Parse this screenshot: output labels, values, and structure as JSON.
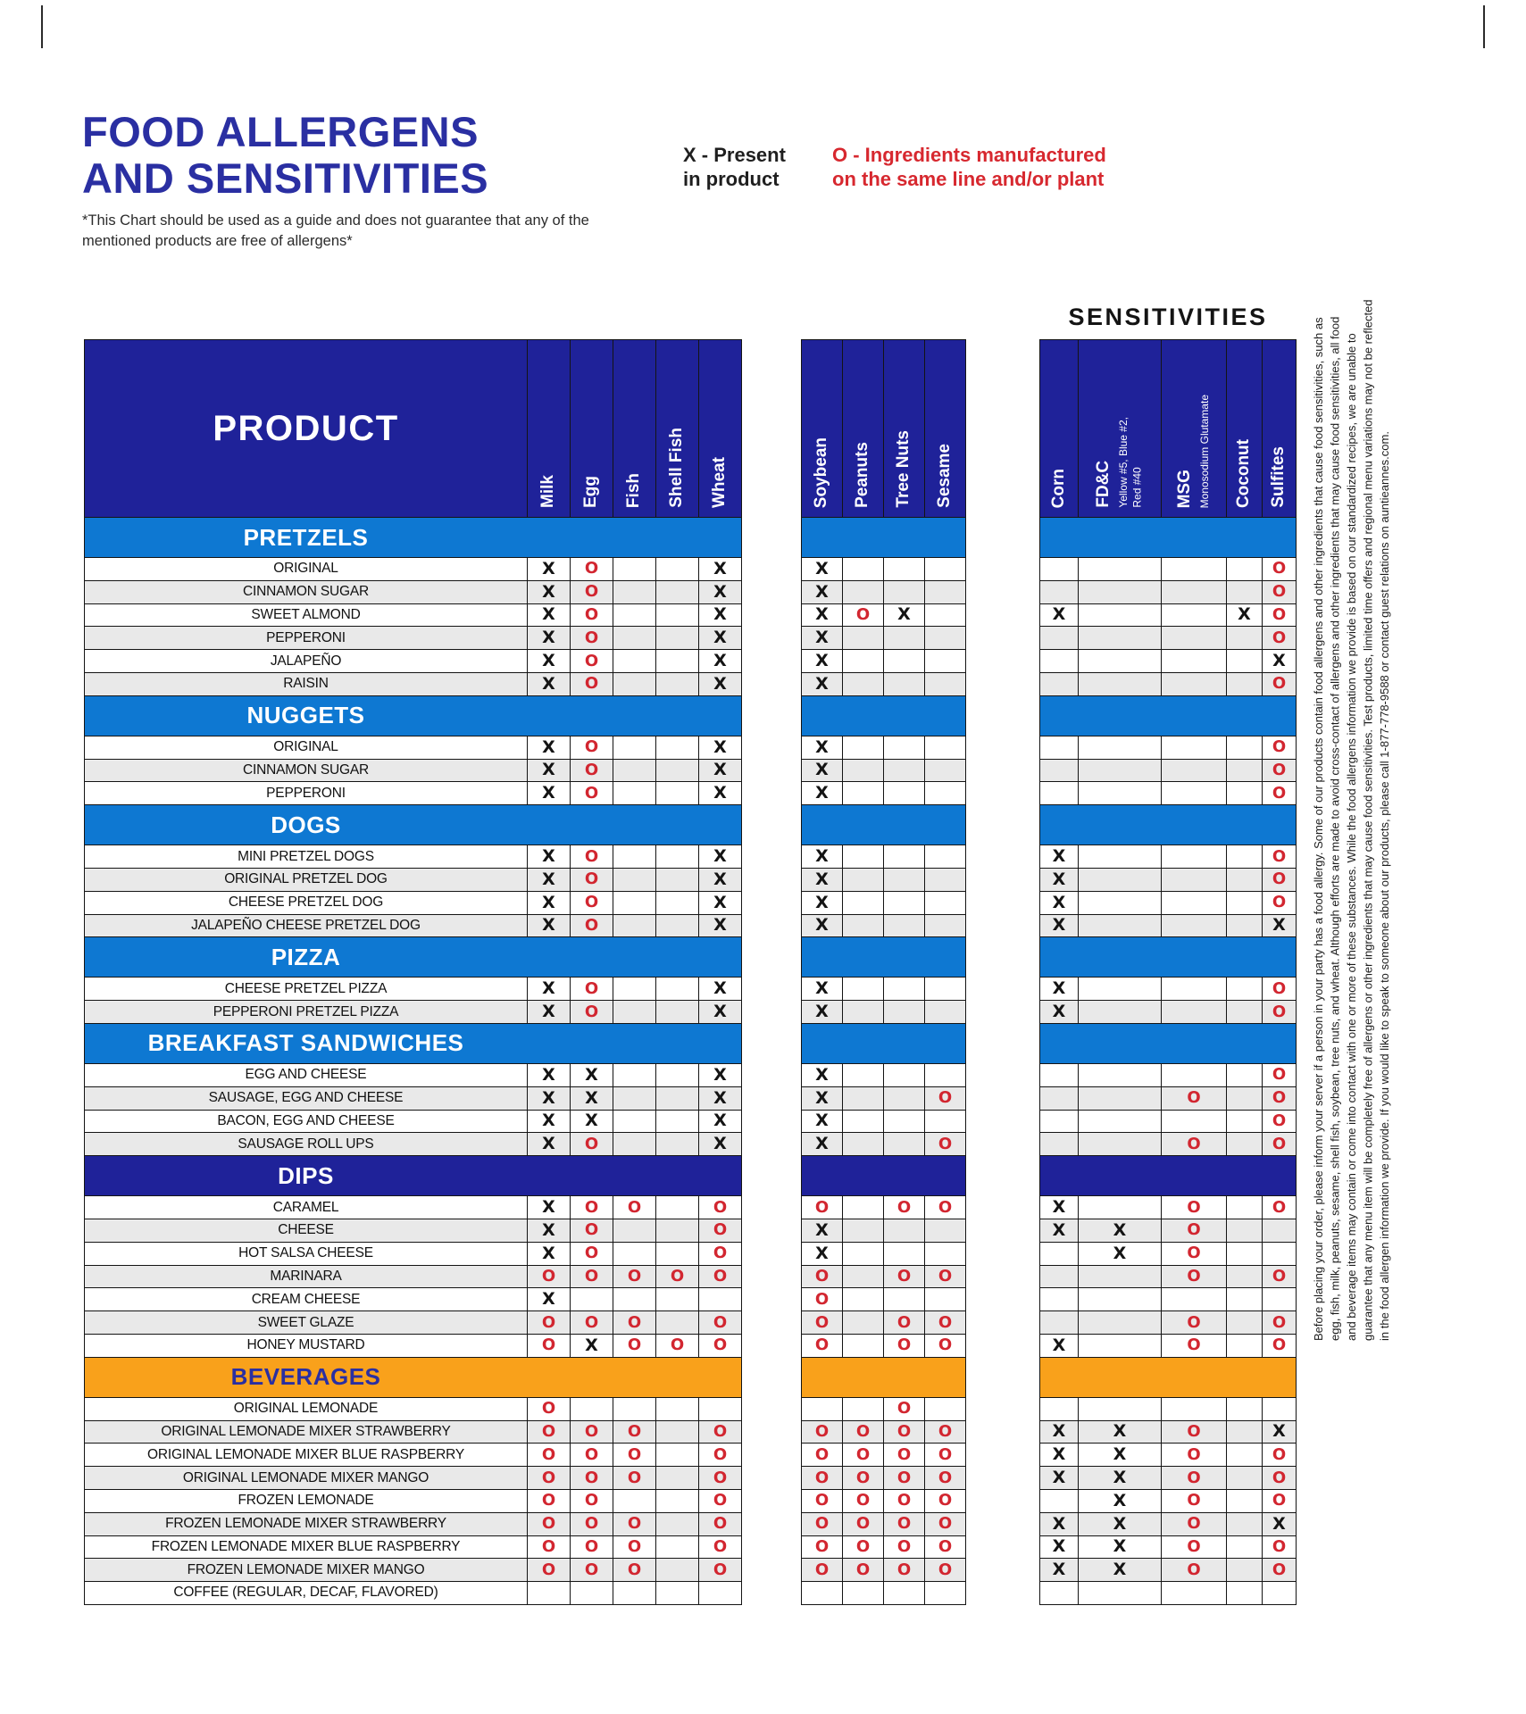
{
  "title": {
    "line1": "FOOD ALLERGENS",
    "line2": "AND SENSITIVITIES"
  },
  "note": {
    "line1": "*This Chart should be used as a guide and does not guarantee that any of the",
    "line2": "mentioned products are free of allergens*"
  },
  "legend": {
    "x_line1": "X - Present",
    "x_line2": "in product",
    "o_line1": "O - Ingredients manufactured",
    "o_line2": "on the same line and/or plant"
  },
  "sensitivities_title": "SENSITIVITIES",
  "colors": {
    "navy": "#1f2299",
    "azure": "#0e78d2",
    "orange": "#f9a11b",
    "red": "#d22630",
    "title_blue": "#2a2fa2",
    "row_alt": "#e9e9e9"
  },
  "table": {
    "product_header": "PRODUCT",
    "groups": [
      {
        "id": "allergens-a",
        "columns": [
          {
            "name": "Milk"
          },
          {
            "name": "Egg"
          },
          {
            "name": "Fish"
          },
          {
            "name": "Shell Fish"
          },
          {
            "name": "Wheat"
          }
        ]
      },
      {
        "id": "allergens-b",
        "columns": [
          {
            "name": "Soybean"
          },
          {
            "name": "Peanuts"
          },
          {
            "name": "Tree Nuts"
          },
          {
            "name": "Sesame"
          }
        ]
      },
      {
        "id": "sensitivities",
        "columns": [
          {
            "name": "Corn"
          },
          {
            "name": "FD&C",
            "sub": "Yellow #5, Blue #2,\nRed #40"
          },
          {
            "name": "MSG",
            "sub": "Monosodium Glutamate"
          },
          {
            "name": "Coconut"
          },
          {
            "name": "Sulfites"
          }
        ]
      }
    ],
    "sections": [
      {
        "name": "PRETZELS",
        "style": "azure",
        "rows": [
          {
            "product": "ORIGINAL",
            "a": [
              "X",
              "O",
              "",
              "",
              "X"
            ],
            "b": [
              "X",
              "",
              "",
              ""
            ],
            "s": [
              "",
              "",
              "",
              "",
              "O"
            ]
          },
          {
            "product": "CINNAMON SUGAR",
            "a": [
              "X",
              "O",
              "",
              "",
              "X"
            ],
            "b": [
              "X",
              "",
              "",
              ""
            ],
            "s": [
              "",
              "",
              "",
              "",
              "O"
            ]
          },
          {
            "product": "SWEET ALMOND",
            "a": [
              "X",
              "O",
              "",
              "",
              "X"
            ],
            "b": [
              "X",
              "O",
              "X",
              ""
            ],
            "s": [
              "X",
              "",
              "",
              "X",
              "O"
            ]
          },
          {
            "product": "PEPPERONI",
            "a": [
              "X",
              "O",
              "",
              "",
              "X"
            ],
            "b": [
              "X",
              "",
              "",
              ""
            ],
            "s": [
              "",
              "",
              "",
              "",
              "O"
            ]
          },
          {
            "product": "JALAPEÑO",
            "a": [
              "X",
              "O",
              "",
              "",
              "X"
            ],
            "b": [
              "X",
              "",
              "",
              ""
            ],
            "s": [
              "",
              "",
              "",
              "",
              "X"
            ]
          },
          {
            "product": "RAISIN",
            "a": [
              "X",
              "O",
              "",
              "",
              "X"
            ],
            "b": [
              "X",
              "",
              "",
              ""
            ],
            "s": [
              "",
              "",
              "",
              "",
              "O"
            ]
          }
        ]
      },
      {
        "name": "NUGGETS",
        "style": "azure",
        "rows": [
          {
            "product": "ORIGINAL",
            "a": [
              "X",
              "O",
              "",
              "",
              "X"
            ],
            "b": [
              "X",
              "",
              "",
              ""
            ],
            "s": [
              "",
              "",
              "",
              "",
              "O"
            ]
          },
          {
            "product": "CINNAMON SUGAR",
            "a": [
              "X",
              "O",
              "",
              "",
              "X"
            ],
            "b": [
              "X",
              "",
              "",
              ""
            ],
            "s": [
              "",
              "",
              "",
              "",
              "O"
            ]
          },
          {
            "product": "PEPPERONI",
            "a": [
              "X",
              "O",
              "",
              "",
              "X"
            ],
            "b": [
              "X",
              "",
              "",
              ""
            ],
            "s": [
              "",
              "",
              "",
              "",
              "O"
            ]
          }
        ]
      },
      {
        "name": "DOGS",
        "style": "azure",
        "rows": [
          {
            "product": "MINI PRETZEL DOGS",
            "a": [
              "X",
              "O",
              "",
              "",
              "X"
            ],
            "b": [
              "X",
              "",
              "",
              ""
            ],
            "s": [
              "X",
              "",
              "",
              "",
              "O"
            ]
          },
          {
            "product": "ORIGINAL PRETZEL DOG",
            "a": [
              "X",
              "O",
              "",
              "",
              "X"
            ],
            "b": [
              "X",
              "",
              "",
              ""
            ],
            "s": [
              "X",
              "",
              "",
              "",
              "O"
            ]
          },
          {
            "product": "CHEESE PRETZEL DOG",
            "a": [
              "X",
              "O",
              "",
              "",
              "X"
            ],
            "b": [
              "X",
              "",
              "",
              ""
            ],
            "s": [
              "X",
              "",
              "",
              "",
              "O"
            ]
          },
          {
            "product": "JALAPEÑO CHEESE PRETZEL DOG",
            "a": [
              "X",
              "O",
              "",
              "",
              "X"
            ],
            "b": [
              "X",
              "",
              "",
              ""
            ],
            "s": [
              "X",
              "",
              "",
              "",
              "X"
            ]
          }
        ]
      },
      {
        "name": "PIZZA",
        "style": "azure",
        "rows": [
          {
            "product": "CHEESE PRETZEL PIZZA",
            "a": [
              "X",
              "O",
              "",
              "",
              "X"
            ],
            "b": [
              "X",
              "",
              "",
              ""
            ],
            "s": [
              "X",
              "",
              "",
              "",
              "O"
            ]
          },
          {
            "product": "PEPPERONI PRETZEL PIZZA",
            "a": [
              "X",
              "O",
              "",
              "",
              "X"
            ],
            "b": [
              "X",
              "",
              "",
              ""
            ],
            "s": [
              "X",
              "",
              "",
              "",
              "O"
            ]
          }
        ]
      },
      {
        "name": "BREAKFAST SANDWICHES",
        "style": "azure",
        "rows": [
          {
            "product": "EGG AND CHEESE",
            "a": [
              "X",
              "X",
              "",
              "",
              "X"
            ],
            "b": [
              "X",
              "",
              "",
              ""
            ],
            "s": [
              "",
              "",
              "",
              "",
              "O"
            ]
          },
          {
            "product": "SAUSAGE, EGG AND CHEESE",
            "a": [
              "X",
              "X",
              "",
              "",
              "X"
            ],
            "b": [
              "X",
              "",
              "",
              "O"
            ],
            "s": [
              "",
              "",
              "O",
              "",
              "O"
            ]
          },
          {
            "product": "BACON, EGG AND CHEESE",
            "a": [
              "X",
              "X",
              "",
              "",
              "X"
            ],
            "b": [
              "X",
              "",
              "",
              ""
            ],
            "s": [
              "",
              "",
              "",
              "",
              "O"
            ]
          },
          {
            "product": "SAUSAGE ROLL UPS",
            "a": [
              "X",
              "O",
              "",
              "",
              "X"
            ],
            "b": [
              "X",
              "",
              "",
              "O"
            ],
            "s": [
              "",
              "",
              "O",
              "",
              "O"
            ]
          }
        ]
      },
      {
        "name": "DIPS",
        "style": "navy",
        "rows": [
          {
            "product": "CARAMEL",
            "a": [
              "X",
              "O",
              "O",
              "",
              "O"
            ],
            "b": [
              "O",
              "",
              "O",
              "O"
            ],
            "s": [
              "X",
              "",
              "O",
              "",
              "O"
            ]
          },
          {
            "product": "CHEESE",
            "a": [
              "X",
              "O",
              "",
              "",
              "O"
            ],
            "b": [
              "X",
              "",
              "",
              ""
            ],
            "s": [
              "X",
              "X",
              "O",
              "",
              ""
            ]
          },
          {
            "product": "HOT SALSA CHEESE",
            "a": [
              "X",
              "O",
              "",
              "",
              "O"
            ],
            "b": [
              "X",
              "",
              "",
              ""
            ],
            "s": [
              "",
              "X",
              "O",
              "",
              ""
            ]
          },
          {
            "product": "MARINARA",
            "a": [
              "O",
              "O",
              "O",
              "O",
              "O"
            ],
            "b": [
              "O",
              "",
              "O",
              "O"
            ],
            "s": [
              "",
              "",
              "O",
              "",
              "O"
            ]
          },
          {
            "product": "CREAM CHEESE",
            "a": [
              "X",
              "",
              "",
              "",
              ""
            ],
            "b": [
              "O",
              "",
              "",
              ""
            ],
            "s": [
              "",
              "",
              "",
              "",
              ""
            ]
          },
          {
            "product": "SWEET GLAZE",
            "a": [
              "O",
              "O",
              "O",
              "",
              "O"
            ],
            "b": [
              "O",
              "",
              "O",
              "O"
            ],
            "s": [
              "",
              "",
              "O",
              "",
              "O"
            ]
          },
          {
            "product": "HONEY MUSTARD",
            "a": [
              "O",
              "X",
              "O",
              "O",
              "O"
            ],
            "b": [
              "O",
              "",
              "O",
              "O"
            ],
            "s": [
              "X",
              "",
              "O",
              "",
              "O"
            ]
          }
        ]
      },
      {
        "name": "BEVERAGES",
        "style": "orange",
        "rows": [
          {
            "product": "ORIGINAL LEMONADE",
            "a": [
              "O",
              "",
              "",
              "",
              ""
            ],
            "b": [
              "",
              "",
              "O",
              ""
            ],
            "s": [
              "",
              "",
              "",
              "",
              ""
            ]
          },
          {
            "product": "ORIGINAL LEMONADE MIXER STRAWBERRY",
            "a": [
              "O",
              "O",
              "O",
              "",
              "O"
            ],
            "b": [
              "O",
              "O",
              "O",
              "O"
            ],
            "s": [
              "X",
              "X",
              "O",
              "",
              "X"
            ]
          },
          {
            "product": "ORIGINAL LEMONADE MIXER BLUE RASPBERRY",
            "a": [
              "O",
              "O",
              "O",
              "",
              "O"
            ],
            "b": [
              "O",
              "O",
              "O",
              "O"
            ],
            "s": [
              "X",
              "X",
              "O",
              "",
              "O"
            ]
          },
          {
            "product": "ORIGINAL LEMONADE MIXER MANGO",
            "a": [
              "O",
              "O",
              "O",
              "",
              "O"
            ],
            "b": [
              "O",
              "O",
              "O",
              "O"
            ],
            "s": [
              "X",
              "X",
              "O",
              "",
              "O"
            ]
          },
          {
            "product": "FROZEN LEMONADE",
            "a": [
              "O",
              "O",
              "",
              "",
              "O"
            ],
            "b": [
              "O",
              "O",
              "O",
              "O"
            ],
            "s": [
              "",
              "X",
              "O",
              "",
              "O"
            ]
          },
          {
            "product": "FROZEN LEMONADE MIXER STRAWBERRY",
            "a": [
              "O",
              "O",
              "O",
              "",
              "O"
            ],
            "b": [
              "O",
              "O",
              "O",
              "O"
            ],
            "s": [
              "X",
              "X",
              "O",
              "",
              "X"
            ]
          },
          {
            "product": "FROZEN LEMONADE MIXER BLUE RASPBERRY",
            "a": [
              "O",
              "O",
              "O",
              "",
              "O"
            ],
            "b": [
              "O",
              "O",
              "O",
              "O"
            ],
            "s": [
              "X",
              "X",
              "O",
              "",
              "O"
            ]
          },
          {
            "product": "FROZEN LEMONADE MIXER MANGO",
            "a": [
              "O",
              "O",
              "O",
              "",
              "O"
            ],
            "b": [
              "O",
              "O",
              "O",
              "O"
            ],
            "s": [
              "X",
              "X",
              "O",
              "",
              "O"
            ]
          },
          {
            "product": "COFFEE (REGULAR, DECAF, FLAVORED)",
            "a": [
              "",
              "",
              "",
              "",
              ""
            ],
            "b": [
              "",
              "",
              "",
              ""
            ],
            "s": [
              "",
              "",
              "",
              "",
              ""
            ]
          }
        ]
      }
    ]
  },
  "side_note": "Before placing your order, please inform your server if a person in your party has a food allergy. Some of our products contain food allergens and other ingredients that cause food sensitivities, such as egg, fish, milk, peanuts, sesame, shell fish, soybean, tree nuts, and wheat. Although efforts are made to avoid cross-contact of allergens and other ingredients that may cause food sensitivities, all food and beverage items may contain or come into contact with one or more of these substances. While the food allergens information we provide is based on our standardized recipes, we are unable to guarantee that any menu item will be completely free of allergens or other ingredients that may cause food sensitivities. Test products, limited time offers and regional menu variations may not be reflected in the food allergen information we provide. If you would like to speak to someone about our products, please call 1-877-778-9588 or contact guest relations on auntieannes.com."
}
